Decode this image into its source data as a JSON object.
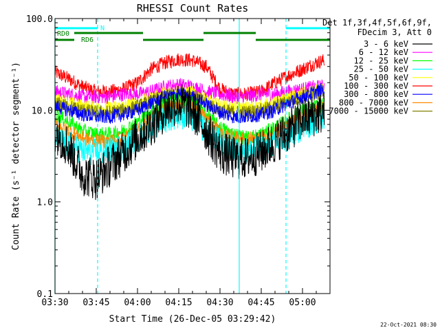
{
  "chart_data": {
    "type": "line",
    "title": "RHESSI Count Rates",
    "xlabel": "Start Time (26-Dec-05 03:29:42)",
    "ylabel": "Count Rate (s⁻¹ detector segment⁻¹)",
    "x_unit": "minutes after 03:30",
    "xlim": [
      0,
      100
    ],
    "ylim": [
      0.1,
      100
    ],
    "y_scale": "log",
    "x_ticks": [
      {
        "value": 0,
        "label": "03:30"
      },
      {
        "value": 15,
        "label": "03:45"
      },
      {
        "value": 30,
        "label": "04:00"
      },
      {
        "value": 45,
        "label": "04:15"
      },
      {
        "value": 60,
        "label": "04:30"
      },
      {
        "value": 75,
        "label": "04:45"
      },
      {
        "value": 90,
        "label": "05:00"
      }
    ],
    "y_ticks": [
      {
        "value": 100,
        "label": "100.0"
      },
      {
        "value": 10,
        "label": "10.0"
      },
      {
        "value": 1,
        "label": "1.0"
      },
      {
        "value": 0.1,
        "label": "0.1"
      }
    ],
    "legend": {
      "header": [
        "Det 1f,3f,4f,5f,6f,9f,",
        "FDecim 3, Att 0"
      ],
      "placement": "right"
    },
    "series": [
      {
        "name": "3 - 6 keV",
        "color": "#000000",
        "x": [
          0,
          5,
          10,
          15,
          20,
          25,
          30,
          35,
          40,
          45,
          50,
          55,
          60,
          65,
          70,
          75,
          80,
          85,
          90,
          95,
          98
        ],
        "y": [
          6.0,
          4.0,
          2.0,
          1.8,
          2.5,
          3.5,
          5.0,
          7.0,
          10.0,
          12.0,
          10.0,
          6.0,
          3.5,
          3.0,
          3.0,
          3.5,
          4.5,
          6.0,
          8.0,
          9.0,
          9.5
        ]
      },
      {
        "name": "6 - 12 keV",
        "color": "#ff00ff",
        "x": [
          0,
          5,
          10,
          15,
          20,
          25,
          30,
          35,
          40,
          45,
          50,
          55,
          60,
          65,
          70,
          75,
          80,
          85,
          90,
          95,
          98
        ],
        "y": [
          16,
          15,
          14,
          14,
          14,
          15,
          15,
          16,
          18,
          19,
          18,
          16,
          15,
          14,
          14,
          15,
          15,
          16,
          17,
          18,
          18
        ]
      },
      {
        "name": "12 - 25 keV",
        "color": "#00ff00",
        "x": [
          0,
          5,
          10,
          15,
          20,
          25,
          30,
          35,
          40,
          45,
          50,
          55,
          60,
          65,
          70,
          75,
          80,
          85,
          90,
          95,
          98
        ],
        "y": [
          9.0,
          7.5,
          6.0,
          5.5,
          5.5,
          6.0,
          7.5,
          9.5,
          12.0,
          13.0,
          12.0,
          9.0,
          6.5,
          5.5,
          5.0,
          5.5,
          6.5,
          8.0,
          10.0,
          11.0,
          11.5
        ]
      },
      {
        "name": "25 - 50 keV",
        "color": "#00ffff",
        "x": [
          0,
          5,
          10,
          15,
          20,
          25,
          30,
          35,
          40,
          45,
          50,
          55,
          60,
          65,
          70,
          75,
          80,
          85,
          90,
          95,
          98
        ],
        "y": [
          5.0,
          4.2,
          3.6,
          3.5,
          3.6,
          4.0,
          5.0,
          6.5,
          8.0,
          9.0,
          8.0,
          6.0,
          4.5,
          3.8,
          3.6,
          3.8,
          4.3,
          5.2,
          6.5,
          7.5,
          7.8
        ]
      },
      {
        "name": "50 - 100 keV",
        "color": "#ffff00",
        "x": [
          0,
          5,
          10,
          15,
          20,
          25,
          30,
          35,
          40,
          45,
          50,
          55,
          60,
          65,
          70,
          75,
          80,
          85,
          90,
          95,
          98
        ],
        "y": [
          13,
          12,
          11,
          10.5,
          10.5,
          11,
          12,
          13.5,
          15.5,
          16.5,
          15.5,
          13,
          11,
          10.5,
          10.5,
          11,
          12,
          13.5,
          15,
          16,
          16.5
        ]
      },
      {
        "name": "100 - 300 keV",
        "color": "#ff0000",
        "x": [
          0,
          5,
          10,
          15,
          20,
          25,
          30,
          35,
          40,
          45,
          50,
          55,
          60,
          65,
          70,
          75,
          80,
          85,
          90,
          95,
          98
        ],
        "y": [
          26,
          22,
          18,
          16,
          16,
          17,
          20,
          28,
          33,
          36,
          35,
          30,
          17,
          15,
          15,
          16,
          20,
          24,
          28,
          33,
          35
        ]
      },
      {
        "name": "300 - 800 keV",
        "color": "#0000ff",
        "x": [
          0,
          5,
          10,
          15,
          20,
          25,
          30,
          35,
          40,
          45,
          50,
          55,
          60,
          65,
          70,
          75,
          80,
          85,
          90,
          95,
          98
        ],
        "y": [
          11,
          10,
          9,
          8.5,
          8.5,
          9,
          10,
          12,
          14,
          15,
          14,
          11.5,
          9.5,
          8.5,
          8.5,
          9,
          10,
          12,
          14,
          16,
          17
        ]
      },
      {
        "name": "800 - 7000 keV",
        "color": "#ff8800",
        "x": [
          0,
          5,
          10,
          15,
          20,
          25,
          30,
          35,
          40,
          45,
          50,
          55,
          60,
          65,
          70,
          75,
          80,
          85,
          90,
          95,
          98
        ],
        "y": [
          7.0,
          6.0,
          5.0,
          4.6,
          4.6,
          5.0,
          6.0,
          8.0,
          10.5,
          11.5,
          10.5,
          8.0,
          5.8,
          5.0,
          4.8,
          5.0,
          5.8,
          7.0,
          8.5,
          10.0,
          10.5
        ]
      },
      {
        "name": "7000 - 15000 keV",
        "color": "#808000",
        "x": [
          0,
          5,
          10,
          15,
          20,
          25,
          30,
          35,
          40,
          45,
          50,
          55,
          60,
          65,
          70,
          75,
          80,
          85,
          90,
          95,
          98
        ],
        "y": [
          12,
          11,
          10,
          9.5,
          9.5,
          10,
          11,
          12.5,
          14.5,
          15.5,
          14.5,
          12,
          10,
          9.5,
          9.5,
          10,
          11,
          12.5,
          14,
          15,
          15.5
        ]
      }
    ],
    "annotations": {
      "night_marker_label": "N",
      "night_marker_color": "#00ffff",
      "night_bars": [
        [
          0,
          15.5
        ],
        [
          84,
          100
        ]
      ],
      "vertical_lines": [
        {
          "x": 0,
          "style": "solid"
        },
        {
          "x": 15.5,
          "style": "dashed"
        },
        {
          "x": 67,
          "style": "solid"
        },
        {
          "x": 84,
          "style": "dashed"
        }
      ],
      "rd_labels": [
        "RD0",
        "RD6"
      ],
      "rd_color": "#008000",
      "rd_bars": [
        {
          "start": 7,
          "end": 32,
          "level": "upper"
        },
        {
          "start": 54,
          "end": 73,
          "level": "upper"
        },
        {
          "start": 0,
          "end": 7,
          "level": "lower"
        },
        {
          "start": 32,
          "end": 54,
          "level": "lower"
        },
        {
          "start": 73,
          "end": 100,
          "level": "lower"
        }
      ]
    },
    "footer_timestamp": "22-Oct-2021 08:30"
  }
}
